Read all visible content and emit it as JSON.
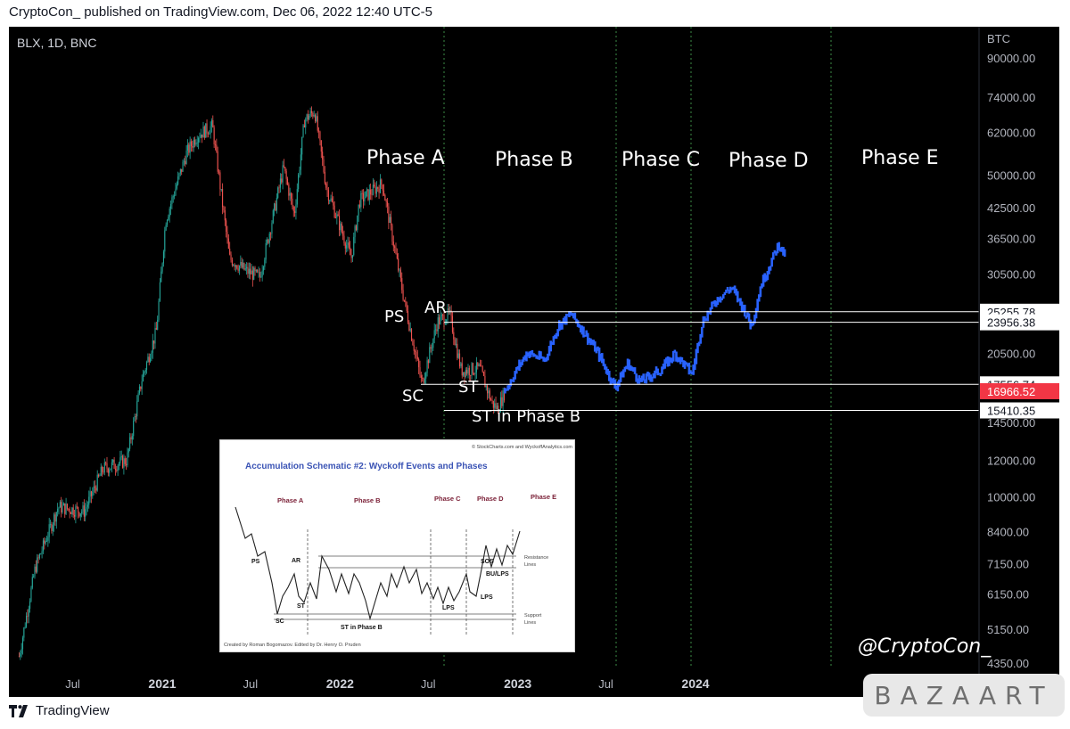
{
  "header": {
    "text": "CryptoCon_ published on TradingView.com, Dec 06, 2022 12:40 UTC-5"
  },
  "symbol": "BLX, 1D, BNC",
  "footer": {
    "brand": "TradingView"
  },
  "watermark": "BAZAART",
  "credit": "@CryptoCon_",
  "colors": {
    "background": "#000000",
    "up": "#26a69a",
    "down": "#ef5350",
    "projection": "#2962ff",
    "current_price": "#f23645"
  },
  "chart_data": {
    "type": "candlestick",
    "title": "",
    "scale": "log",
    "y_unit": "BTC",
    "y_ticks": [
      90000,
      74000,
      62000,
      50000,
      42500,
      36500,
      30500,
      20500,
      14500,
      12000,
      10000,
      8400,
      7150,
      6150,
      5150,
      4350
    ],
    "y_tick_labels": [
      "90000.00",
      "74000.00",
      "62000.00",
      "50000.00",
      "42500.00",
      "36500.00",
      "30500.00",
      "20500.00",
      "14500.00",
      "12000.00",
      "10000.00",
      "8400.00",
      "7150.00",
      "6150.00",
      "5150.00",
      "4350.00"
    ],
    "x_ticks": [
      {
        "label": "Jul",
        "year": false
      },
      {
        "label": "2021",
        "year": true
      },
      {
        "label": "Jul",
        "year": false
      },
      {
        "label": "2022",
        "year": true
      },
      {
        "label": "Jul",
        "year": false
      },
      {
        "label": "2023",
        "year": true
      },
      {
        "label": "Jul",
        "year": false
      },
      {
        "label": "2024",
        "year": true
      }
    ],
    "price_line_labels": [
      {
        "value": 25255.78,
        "label": "25255.78"
      },
      {
        "value": 23956.38,
        "label": "23956.38"
      },
      {
        "value": 17556.74,
        "label": "17556.74"
      },
      {
        "value": 16966.52,
        "label": "16966.52",
        "current": true
      },
      {
        "value": 15410.35,
        "label": "15410.35"
      }
    ],
    "phases": [
      "Phase A",
      "Phase B",
      "Phase C",
      "Phase D",
      "Phase E"
    ],
    "events": [
      "PS",
      "AR",
      "SC",
      "ST",
      "ST in Phase B"
    ],
    "price_path": [
      [
        "2020-03-13",
        4500
      ],
      [
        "2020-04-15",
        7000
      ],
      [
        "2020-06-01",
        9500
      ],
      [
        "2020-07-25",
        9300
      ],
      [
        "2020-09-01",
        11500
      ],
      [
        "2020-10-20",
        12000
      ],
      [
        "2020-11-20",
        18000
      ],
      [
        "2020-12-20",
        23000
      ],
      [
        "2021-01-08",
        40000
      ],
      [
        "2021-02-20",
        56000
      ],
      [
        "2021-03-13",
        61000
      ],
      [
        "2021-04-14",
        64000
      ],
      [
        "2021-05-19",
        33000
      ],
      [
        "2021-06-22",
        31000
      ],
      [
        "2021-07-20",
        30000
      ],
      [
        "2021-09-07",
        52000
      ],
      [
        "2021-09-29",
        41000
      ],
      [
        "2021-10-20",
        66000
      ],
      [
        "2021-11-10",
        69000
      ],
      [
        "2021-12-04",
        47000
      ],
      [
        "2022-01-24",
        33000
      ],
      [
        "2022-02-10",
        44000
      ],
      [
        "2022-03-29",
        48000
      ],
      [
        "2022-05-12",
        27000
      ],
      [
        "2022-06-18",
        17600
      ],
      [
        "2022-07-20",
        24000
      ],
      [
        "2022-08-14",
        25000
      ],
      [
        "2022-09-07",
        18800
      ],
      [
        "2022-10-15",
        19000
      ],
      [
        "2022-11-09",
        16000
      ],
      [
        "2022-11-21",
        15500
      ],
      [
        "2022-12-06",
        16966.52
      ]
    ],
    "projection_path": [
      [
        "2022-12-06",
        17000
      ],
      [
        "2022-12-25",
        18500
      ],
      [
        "2023-01-20",
        20600
      ],
      [
        "2023-02-25",
        19800
      ],
      [
        "2023-03-25",
        23500
      ],
      [
        "2023-04-20",
        25000
      ],
      [
        "2023-05-15",
        23000
      ],
      [
        "2023-06-15",
        20500
      ],
      [
        "2023-07-20",
        17300
      ],
      [
        "2023-08-15",
        19500
      ],
      [
        "2023-09-10",
        17800
      ],
      [
        "2023-10-20",
        18800
      ],
      [
        "2023-11-20",
        20500
      ],
      [
        "2023-12-25",
        18500
      ],
      [
        "2024-01-15",
        24000
      ],
      [
        "2024-02-15",
        27000
      ],
      [
        "2024-03-15",
        28500
      ],
      [
        "2024-04-10",
        25500
      ],
      [
        "2024-04-25",
        23500
      ],
      [
        "2024-05-15",
        29000
      ],
      [
        "2024-06-10",
        33500
      ],
      [
        "2024-06-20",
        35500
      ],
      [
        "2024-07-05",
        33000
      ]
    ]
  },
  "inset": {
    "copyright": "© StockCharts.com and WyckoffAnalytics.com",
    "title": "Accumulation Schematic #2: Wyckoff Events and Phases",
    "phases": [
      "Phase A",
      "Phase B",
      "Phase C",
      "Phase D",
      "Phase E"
    ],
    "events": [
      "PS",
      "AR",
      "SC",
      "ST",
      "ST in Phase B",
      "LPS",
      "SOS",
      "BU/LPS",
      "LPS"
    ],
    "resistance": "Resistance",
    "resistance2": "Lines",
    "support": "Support",
    "support2": "Lines",
    "credit": "Created by Roman Bogomazov. Edited by Dr. Henry O. Pruden"
  }
}
